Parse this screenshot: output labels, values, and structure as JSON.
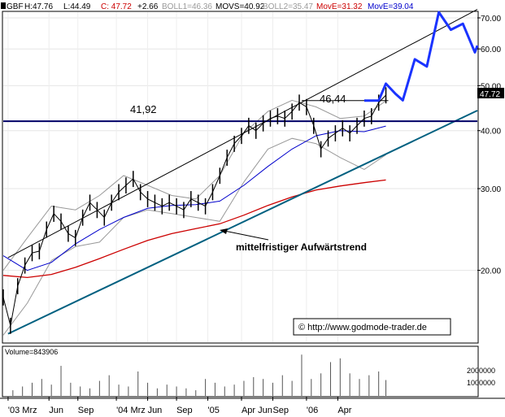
{
  "header": {
    "ticker": "GBF",
    "high": "H:47.76",
    "low": "L:44.49",
    "close": "C: 47.72",
    "change": "+2.66",
    "boll1": "BOLL1=46.36",
    "movs": "MOVS=40.92",
    "boll2": "BOLL2=35.47",
    "move_red": "MovE=31.32",
    "move_blue": "MovE=39.04"
  },
  "colors": {
    "price": "#000000",
    "boll": "#999999",
    "mov_blue": "#0000cc",
    "mov_red": "#cc0000",
    "trend": "#006080",
    "projection": "#1a33ff",
    "resistance": "#000066",
    "last_price_box": "#000000"
  },
  "annotations": {
    "resistance_left": "41,92",
    "resistance_right": "46,44",
    "trend_label": "mittelfristiger Aufwärtstrend",
    "copyright": "© http://www.godmode-trader.de",
    "last_price": "47.72"
  },
  "volume_panel": {
    "label": "Volume=843906",
    "ticks": [
      "2000000",
      "1000000"
    ]
  },
  "chart_data": {
    "type": "line",
    "scale": "log",
    "ylim": [
      14,
      72
    ],
    "y_ticks": [
      "70.00",
      "60.00",
      "50.00",
      "40.00",
      "30.00",
      "20.00"
    ],
    "x_ticks": [
      "'03 Mrz",
      "Jun",
      "Sep",
      "'04 Mrz",
      "Jun",
      "Sep",
      "'05",
      "Apr Jun",
      "Sep",
      "'06",
      "Apr"
    ],
    "grid": true,
    "price": {
      "name": "GBF",
      "x": [
        0,
        3,
        6,
        9,
        12,
        15,
        18,
        21,
        24,
        27,
        30,
        33,
        36,
        39,
        42,
        45,
        48,
        51,
        54,
        57,
        60,
        63,
        66,
        69,
        72,
        75,
        78,
        81,
        84,
        87,
        90,
        93,
        96,
        99,
        102,
        105,
        108,
        111,
        114,
        117,
        120,
        123,
        126,
        129,
        132,
        135,
        138,
        141,
        144,
        147,
        150,
        153,
        156,
        159
      ],
      "values": [
        17.5,
        15.2,
        18.5,
        20.5,
        21.8,
        22.0,
        24.5,
        26.5,
        25.5,
        24.0,
        23.5,
        26.0,
        28.0,
        27.0,
        26.0,
        28.0,
        29.5,
        30.5,
        31.5,
        29.5,
        28.5,
        28.0,
        27.5,
        28.0,
        27.5,
        27.0,
        28.5,
        28.0,
        27.5,
        29.5,
        32.0,
        35.0,
        37.5,
        39.0,
        41.0,
        40.0,
        41.5,
        42.5,
        43.0,
        42.5,
        44.0,
        46.0,
        45.0,
        41.0,
        36.5,
        38.5,
        39.5,
        40.5,
        39.5,
        41.0,
        42.5,
        43.0,
        46.0,
        47.7
      ]
    },
    "series": [
      {
        "name": "BOLL1",
        "x": [
          0,
          10,
          20,
          30,
          40,
          50,
          60,
          70,
          80,
          90,
          100,
          110,
          120,
          130,
          140,
          150,
          159
        ],
        "values": [
          20.0,
          23.5,
          27.5,
          27.0,
          29.0,
          32.0,
          30.5,
          29.0,
          28.5,
          32.0,
          39.5,
          44.0,
          46.5,
          45.0,
          42.5,
          43.0,
          46.36
        ]
      },
      {
        "name": "BOLL2",
        "x": [
          0,
          10,
          20,
          30,
          40,
          50,
          60,
          70,
          80,
          90,
          100,
          110,
          120,
          130,
          140,
          150,
          159
        ],
        "values": [
          14.5,
          17.0,
          21.0,
          22.5,
          23.0,
          26.0,
          27.0,
          26.5,
          26.0,
          25.5,
          31.0,
          36.5,
          38.5,
          37.5,
          35.0,
          33.0,
          35.47
        ]
      },
      {
        "name": "MOVS",
        "x": [
          0,
          10,
          20,
          30,
          40,
          50,
          60,
          70,
          80,
          90,
          100,
          110,
          120,
          130,
          140,
          150,
          159
        ],
        "values": [
          21.5,
          20.0,
          20.8,
          22.8,
          24.5,
          26.0,
          27.2,
          27.6,
          27.7,
          28.2,
          30.5,
          33.5,
          36.5,
          39.0,
          40.0,
          39.8,
          40.92
        ]
      },
      {
        "name": "MovE",
        "x": [
          0,
          10,
          20,
          30,
          40,
          50,
          60,
          70,
          80,
          90,
          100,
          110,
          120,
          130,
          140,
          150,
          159
        ],
        "values": [
          19.5,
          19.3,
          19.6,
          20.3,
          21.2,
          22.2,
          23.2,
          24.0,
          24.6,
          25.2,
          26.3,
          27.6,
          28.8,
          29.8,
          30.4,
          30.9,
          31.32
        ]
      }
    ],
    "projection": {
      "x": [
        150,
        156,
        159,
        163,
        166,
        171,
        176,
        181,
        186,
        191,
        196,
        197
      ],
      "values": [
        46.44,
        46.44,
        50.5,
        48.0,
        46.5,
        57.0,
        55.0,
        72.0,
        66.0,
        68.0,
        59.0,
        61.0
      ]
    },
    "resistance": {
      "value": 41.92,
      "x_range": [
        0,
        197
      ]
    },
    "resistance_short": {
      "value": 46.44,
      "x_range": [
        124,
        160
      ]
    },
    "trend_lower": {
      "x": [
        2,
        197
      ],
      "values": [
        14.6,
        44.2
      ]
    },
    "trend_upper": {
      "x": [
        2,
        197
      ],
      "values": [
        21.3,
        73.0
      ]
    },
    "volume": {
      "x": [
        4,
        8,
        12,
        16,
        20,
        24,
        28,
        32,
        36,
        40,
        44,
        48,
        52,
        56,
        60,
        64,
        68,
        72,
        76,
        80,
        84,
        88,
        92,
        96,
        100,
        104,
        108,
        112,
        116,
        120,
        124,
        128,
        132,
        136,
        140,
        144,
        148,
        152,
        156,
        159
      ],
      "values": [
        300000,
        500000,
        700000,
        900000,
        600000,
        1600000,
        700000,
        500000,
        400000,
        800000,
        1100000,
        600000,
        500000,
        1300000,
        700000,
        400000,
        600000,
        500000,
        400000,
        300000,
        900000,
        700000,
        500000,
        600000,
        800000,
        1000000,
        900000,
        700000,
        1100000,
        800000,
        2200000,
        900000,
        1200000,
        1800000,
        2000000,
        1200000,
        900000,
        1100000,
        1300000,
        843906
      ]
    }
  }
}
